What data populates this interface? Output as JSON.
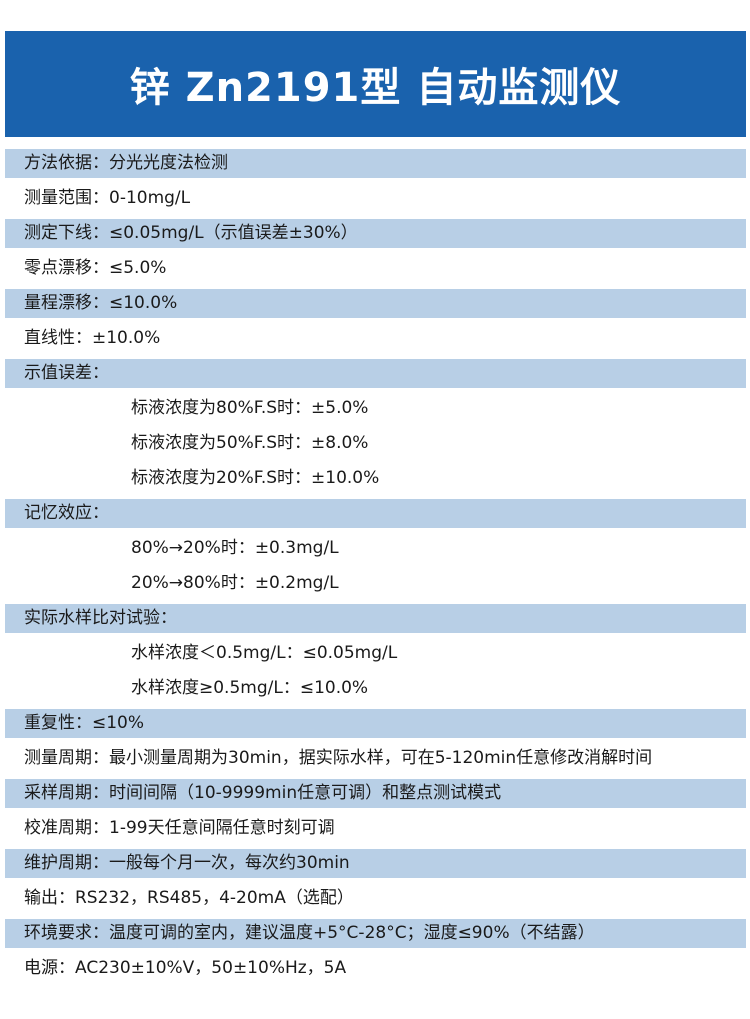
{
  "title": "锌 Zn2191型 自动监测仪",
  "colors": {
    "header": "#1a62ad",
    "band": "#b8cfe6"
  },
  "rows": [
    {
      "text": "方法依据：分光光度法检测",
      "shaded": true,
      "sub": false
    },
    {
      "text": "测量范围：0-10mg/L",
      "shaded": false,
      "sub": false
    },
    {
      "text": "测定下线：≤0.05mg/L（示值误差±30%）",
      "shaded": true,
      "sub": false
    },
    {
      "text": "零点漂移：≤5.0%",
      "shaded": false,
      "sub": false
    },
    {
      "text": "量程漂移：≤10.0%",
      "shaded": true,
      "sub": false
    },
    {
      "text": "直线性：±10.0%",
      "shaded": false,
      "sub": false
    },
    {
      "text": "示值误差：",
      "shaded": true,
      "sub": false
    },
    {
      "text": "标液浓度为80%F.S时：±5.0%",
      "shaded": false,
      "sub": true
    },
    {
      "text": "标液浓度为50%F.S时：±8.0%",
      "shaded": false,
      "sub": true
    },
    {
      "text": "标液浓度为20%F.S时：±10.0%",
      "shaded": false,
      "sub": true
    },
    {
      "text": "记忆效应：",
      "shaded": true,
      "sub": false
    },
    {
      "text": "80%→20%时：±0.3mg/L",
      "shaded": false,
      "sub": true
    },
    {
      "text": "20%→80%时：±0.2mg/L",
      "shaded": false,
      "sub": true
    },
    {
      "text": "实际水样比对试验：",
      "shaded": true,
      "sub": false
    },
    {
      "text": "水样浓度＜0.5mg/L：≤0.05mg/L",
      "shaded": false,
      "sub": true
    },
    {
      "text": "水样浓度≥0.5mg/L：≤10.0%",
      "shaded": false,
      "sub": true
    },
    {
      "text": "重复性：≤10%",
      "shaded": true,
      "sub": false
    },
    {
      "text": "测量周期：最小测量周期为30min，据实际水样，可在5-120min任意修改消解时间",
      "shaded": false,
      "sub": false
    },
    {
      "text": "采样周期：时间间隔（10-9999min任意可调）和整点测试模式",
      "shaded": true,
      "sub": false
    },
    {
      "text": "校准周期：1-99天任意间隔任意时刻可调",
      "shaded": false,
      "sub": false
    },
    {
      "text": "维护周期：一般每个月一次，每次约30min",
      "shaded": true,
      "sub": false
    },
    {
      "text": "输出：RS232，RS485，4-20mA（选配）",
      "shaded": false,
      "sub": false
    },
    {
      "text": "环境要求：温度可调的室内，建议温度+5°C-28°C；湿度≤90%（不结露）",
      "shaded": true,
      "sub": false
    },
    {
      "text": "电源：AC230±10%V，50±10%Hz，5A",
      "shaded": false,
      "sub": false
    }
  ]
}
